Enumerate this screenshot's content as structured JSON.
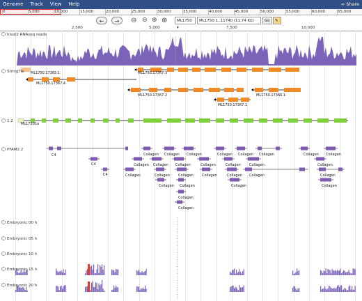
{
  "menu": {
    "items": [
      "Genome",
      "Track",
      "View",
      "Help"
    ],
    "share": "Share"
  },
  "overview": {
    "ticks": [
      "0",
      "5,000",
      "10,000",
      "15,000",
      "20,000",
      "25,000",
      "30,000",
      "35,000",
      "40,000",
      "45,000",
      "50,000",
      "55,000",
      "60,000",
      "65,000"
    ]
  },
  "nav": {
    "left_arrow": "←",
    "right_arrow": "→",
    "zoom_out_big": "⊖",
    "zoom_out": "⊖",
    "zoom_in": "⊕",
    "zoom_in_big": "⊕",
    "ref_seq": "ML1750",
    "location": "ML1750:1..11740 (11.74 Kb)",
    "go": "Go"
  },
  "ruler": {
    "labels": [
      "2,500",
      "5,000",
      "7,500",
      "10,000"
    ]
  },
  "tracks": [
    {
      "id": "rnaseq",
      "label": "hisat2 RNAseq reads"
    },
    {
      "id": "stringtie",
      "label": "StringTie"
    },
    {
      "id": "gene",
      "label": "1.2"
    },
    {
      "id": "pfam",
      "label": "PFAM2.2"
    },
    {
      "id": "e00",
      "label": "Embryonic 00 h"
    },
    {
      "id": "e05",
      "label": "Embryonic 05 h"
    },
    {
      "id": "e10",
      "label": "Embryonic 10 h"
    },
    {
      "id": "e15",
      "label": "Embryonic 15 h"
    },
    {
      "id": "e20",
      "label": "Embryonic 20 h"
    }
  ],
  "stringtie_features": [
    "ML1750.17365.1",
    "ML1750.17367.3",
    "ML1750.17367.4",
    "ML1750.17367.2",
    "ML1750.17366.1",
    "ML1750.17367.1"
  ],
  "gene_features": [
    "ML17501a"
  ],
  "pfam_labels": [
    "C4",
    "C4",
    "C4",
    "Collagen"
  ],
  "colors": {
    "menubar": "#2f4f86",
    "coverage": "#7a63b8",
    "stringtie": "#f08a24",
    "gene": "#7fcf3f",
    "pfam": "#8059b0",
    "gene_line": "#000000"
  }
}
